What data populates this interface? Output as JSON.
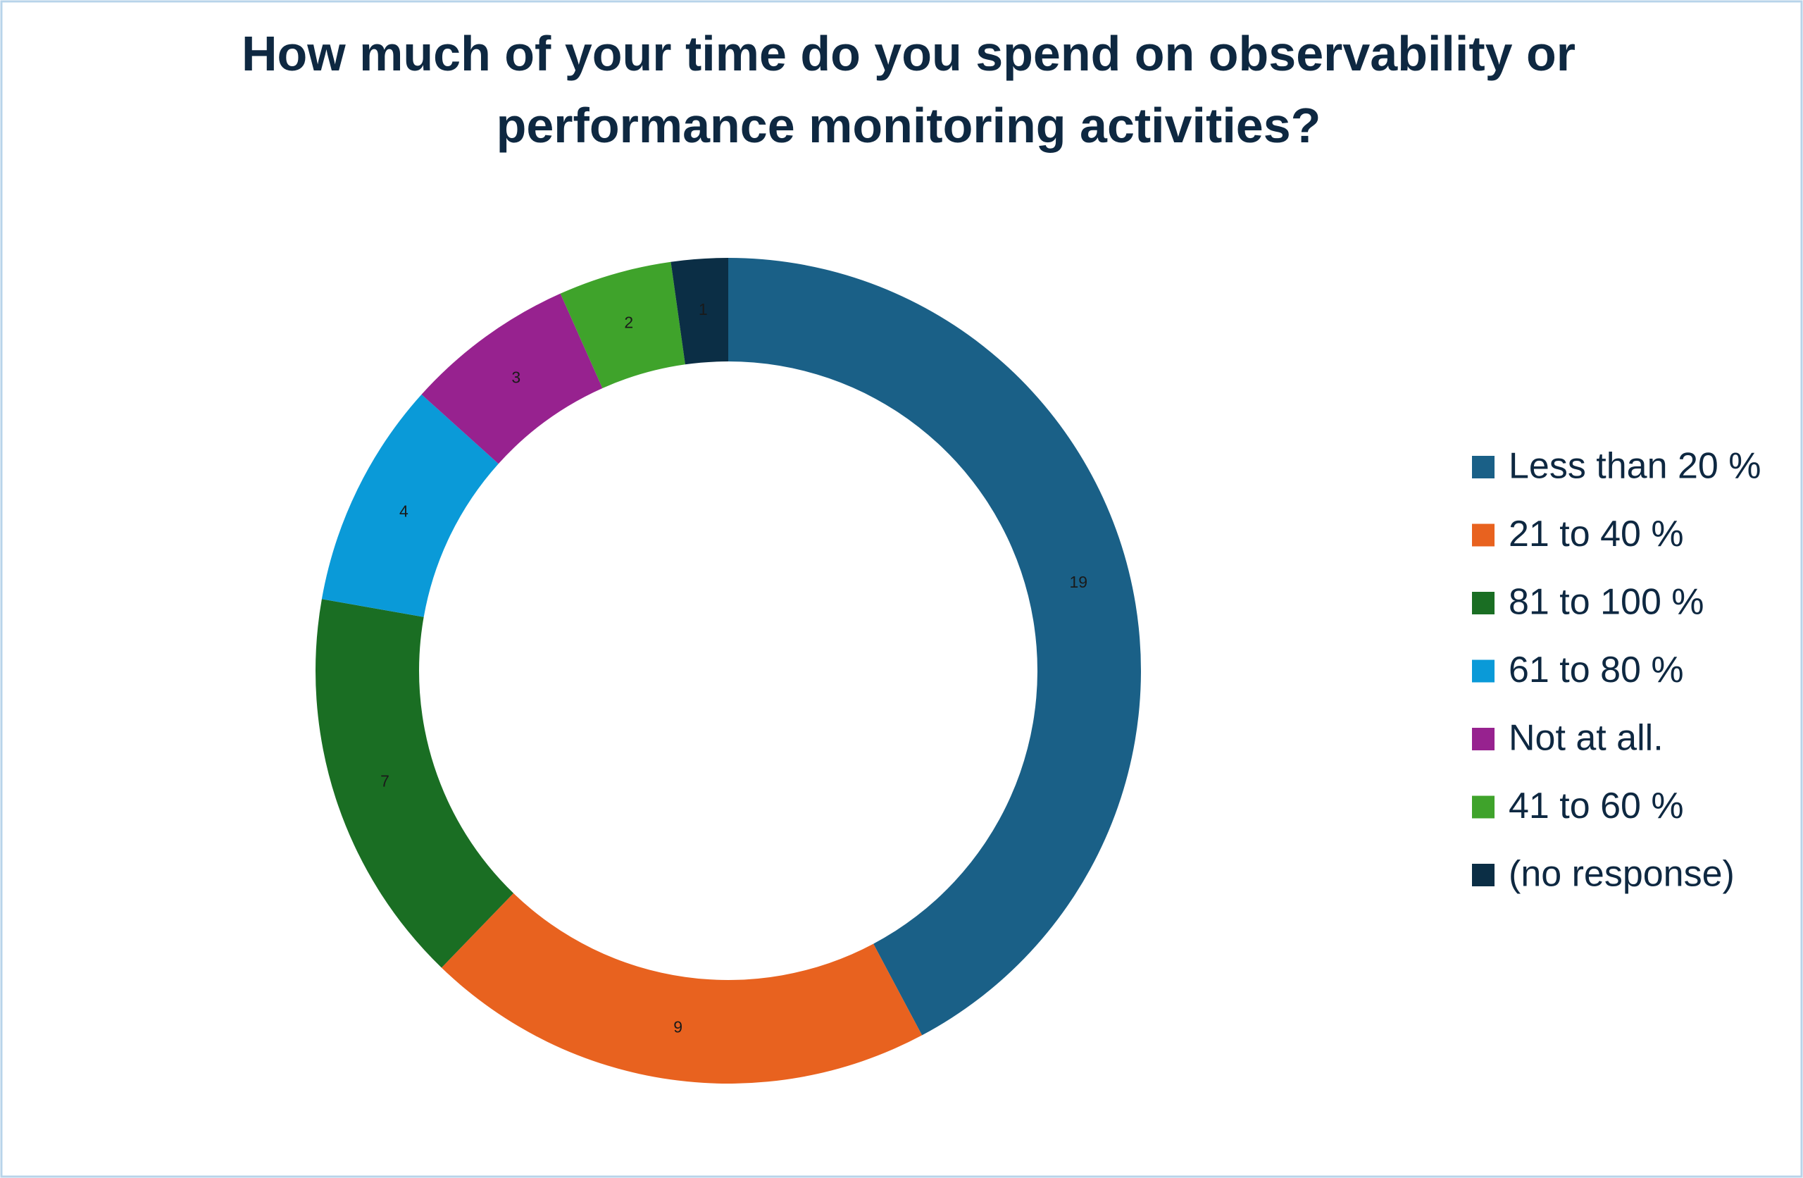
{
  "chart_data": {
    "type": "donut",
    "title": "How much of your time do you spend on observability or performance monitoring activities?",
    "categories": [
      "Less than 20 %",
      "21 to 40 %",
      "81 to 100 %",
      "61 to 80 %",
      "Not at all.",
      "41 to 60 %",
      "(no response)"
    ],
    "values": [
      19,
      9,
      7,
      4,
      3,
      2,
      1
    ],
    "colors": [
      "#1a6087",
      "#e8621f",
      "#1a6e23",
      "#0a9ad8",
      "#97228f",
      "#3fa32b",
      "#0b2e45"
    ],
    "legend": "right"
  }
}
